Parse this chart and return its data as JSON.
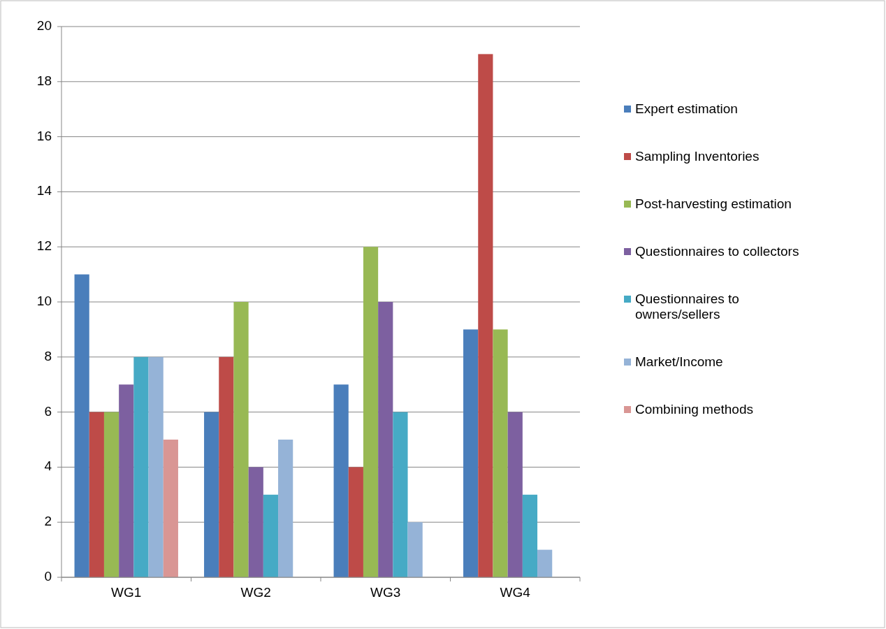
{
  "chart_data": {
    "type": "bar",
    "categories": [
      "WG1",
      "WG2",
      "WG3",
      "WG4"
    ],
    "series": [
      {
        "name": "Expert estimation",
        "color": "#4a7ebb",
        "values": [
          11,
          6,
          7,
          9
        ]
      },
      {
        "name": "Sampling Inventories",
        "color": "#be4b48",
        "values": [
          6,
          8,
          4,
          19
        ]
      },
      {
        "name": "Post-harvesting estimation",
        "color": "#98b954",
        "values": [
          6,
          10,
          12,
          9
        ]
      },
      {
        "name": "Questionnaires to collectors",
        "color": "#7d60a0",
        "values": [
          7,
          4,
          10,
          6
        ]
      },
      {
        "name": "Questionnaires to owners/sellers",
        "color": "#46aac5",
        "values": [
          8,
          3,
          6,
          3
        ]
      },
      {
        "name": "Market/Income",
        "color": "#95b3d7",
        "values": [
          8,
          5,
          2,
          1
        ]
      },
      {
        "name": "Combining methods",
        "color": "#d99694",
        "values": [
          5,
          null,
          null,
          null
        ]
      }
    ],
    "ylim": [
      0,
      20
    ],
    "yticks": [
      0,
      2,
      4,
      6,
      8,
      10,
      12,
      14,
      16,
      18,
      20
    ],
    "grid": "y",
    "legend": "right"
  }
}
